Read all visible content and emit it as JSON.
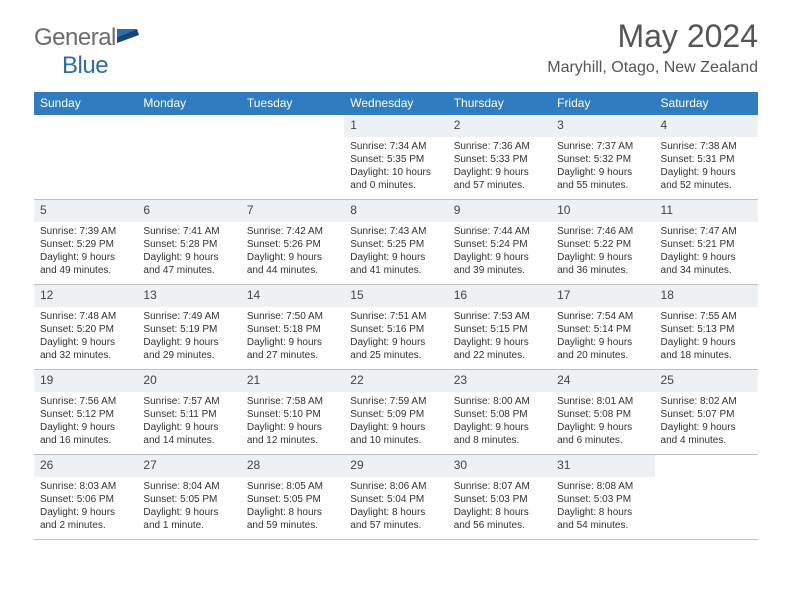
{
  "brand": {
    "name_part1": "General",
    "name_part2": "Blue",
    "flag_colors": {
      "top": "#2f6da8",
      "bottom": "#13477a"
    }
  },
  "title": "May 2024",
  "location": "Maryhill, Otago, New Zealand",
  "header_bg": "#2f7dc0",
  "daynum_bg": "#eef1f3",
  "border_color": "#bfbfbf",
  "weekdays": [
    "Sunday",
    "Monday",
    "Tuesday",
    "Wednesday",
    "Thursday",
    "Friday",
    "Saturday"
  ],
  "weeks": [
    [
      {
        "n": "",
        "sunrise": "",
        "sunset": "",
        "day": ""
      },
      {
        "n": "",
        "sunrise": "",
        "sunset": "",
        "day": ""
      },
      {
        "n": "",
        "sunrise": "",
        "sunset": "",
        "day": ""
      },
      {
        "n": "1",
        "sunrise": "Sunrise: 7:34 AM",
        "sunset": "Sunset: 5:35 PM",
        "day": "Daylight: 10 hours and 0 minutes."
      },
      {
        "n": "2",
        "sunrise": "Sunrise: 7:36 AM",
        "sunset": "Sunset: 5:33 PM",
        "day": "Daylight: 9 hours and 57 minutes."
      },
      {
        "n": "3",
        "sunrise": "Sunrise: 7:37 AM",
        "sunset": "Sunset: 5:32 PM",
        "day": "Daylight: 9 hours and 55 minutes."
      },
      {
        "n": "4",
        "sunrise": "Sunrise: 7:38 AM",
        "sunset": "Sunset: 5:31 PM",
        "day": "Daylight: 9 hours and 52 minutes."
      }
    ],
    [
      {
        "n": "5",
        "sunrise": "Sunrise: 7:39 AM",
        "sunset": "Sunset: 5:29 PM",
        "day": "Daylight: 9 hours and 49 minutes."
      },
      {
        "n": "6",
        "sunrise": "Sunrise: 7:41 AM",
        "sunset": "Sunset: 5:28 PM",
        "day": "Daylight: 9 hours and 47 minutes."
      },
      {
        "n": "7",
        "sunrise": "Sunrise: 7:42 AM",
        "sunset": "Sunset: 5:26 PM",
        "day": "Daylight: 9 hours and 44 minutes."
      },
      {
        "n": "8",
        "sunrise": "Sunrise: 7:43 AM",
        "sunset": "Sunset: 5:25 PM",
        "day": "Daylight: 9 hours and 41 minutes."
      },
      {
        "n": "9",
        "sunrise": "Sunrise: 7:44 AM",
        "sunset": "Sunset: 5:24 PM",
        "day": "Daylight: 9 hours and 39 minutes."
      },
      {
        "n": "10",
        "sunrise": "Sunrise: 7:46 AM",
        "sunset": "Sunset: 5:22 PM",
        "day": "Daylight: 9 hours and 36 minutes."
      },
      {
        "n": "11",
        "sunrise": "Sunrise: 7:47 AM",
        "sunset": "Sunset: 5:21 PM",
        "day": "Daylight: 9 hours and 34 minutes."
      }
    ],
    [
      {
        "n": "12",
        "sunrise": "Sunrise: 7:48 AM",
        "sunset": "Sunset: 5:20 PM",
        "day": "Daylight: 9 hours and 32 minutes."
      },
      {
        "n": "13",
        "sunrise": "Sunrise: 7:49 AM",
        "sunset": "Sunset: 5:19 PM",
        "day": "Daylight: 9 hours and 29 minutes."
      },
      {
        "n": "14",
        "sunrise": "Sunrise: 7:50 AM",
        "sunset": "Sunset: 5:18 PM",
        "day": "Daylight: 9 hours and 27 minutes."
      },
      {
        "n": "15",
        "sunrise": "Sunrise: 7:51 AM",
        "sunset": "Sunset: 5:16 PM",
        "day": "Daylight: 9 hours and 25 minutes."
      },
      {
        "n": "16",
        "sunrise": "Sunrise: 7:53 AM",
        "sunset": "Sunset: 5:15 PM",
        "day": "Daylight: 9 hours and 22 minutes."
      },
      {
        "n": "17",
        "sunrise": "Sunrise: 7:54 AM",
        "sunset": "Sunset: 5:14 PM",
        "day": "Daylight: 9 hours and 20 minutes."
      },
      {
        "n": "18",
        "sunrise": "Sunrise: 7:55 AM",
        "sunset": "Sunset: 5:13 PM",
        "day": "Daylight: 9 hours and 18 minutes."
      }
    ],
    [
      {
        "n": "19",
        "sunrise": "Sunrise: 7:56 AM",
        "sunset": "Sunset: 5:12 PM",
        "day": "Daylight: 9 hours and 16 minutes."
      },
      {
        "n": "20",
        "sunrise": "Sunrise: 7:57 AM",
        "sunset": "Sunset: 5:11 PM",
        "day": "Daylight: 9 hours and 14 minutes."
      },
      {
        "n": "21",
        "sunrise": "Sunrise: 7:58 AM",
        "sunset": "Sunset: 5:10 PM",
        "day": "Daylight: 9 hours and 12 minutes."
      },
      {
        "n": "22",
        "sunrise": "Sunrise: 7:59 AM",
        "sunset": "Sunset: 5:09 PM",
        "day": "Daylight: 9 hours and 10 minutes."
      },
      {
        "n": "23",
        "sunrise": "Sunrise: 8:00 AM",
        "sunset": "Sunset: 5:08 PM",
        "day": "Daylight: 9 hours and 8 minutes."
      },
      {
        "n": "24",
        "sunrise": "Sunrise: 8:01 AM",
        "sunset": "Sunset: 5:08 PM",
        "day": "Daylight: 9 hours and 6 minutes."
      },
      {
        "n": "25",
        "sunrise": "Sunrise: 8:02 AM",
        "sunset": "Sunset: 5:07 PM",
        "day": "Daylight: 9 hours and 4 minutes."
      }
    ],
    [
      {
        "n": "26",
        "sunrise": "Sunrise: 8:03 AM",
        "sunset": "Sunset: 5:06 PM",
        "day": "Daylight: 9 hours and 2 minutes."
      },
      {
        "n": "27",
        "sunrise": "Sunrise: 8:04 AM",
        "sunset": "Sunset: 5:05 PM",
        "day": "Daylight: 9 hours and 1 minute."
      },
      {
        "n": "28",
        "sunrise": "Sunrise: 8:05 AM",
        "sunset": "Sunset: 5:05 PM",
        "day": "Daylight: 8 hours and 59 minutes."
      },
      {
        "n": "29",
        "sunrise": "Sunrise: 8:06 AM",
        "sunset": "Sunset: 5:04 PM",
        "day": "Daylight: 8 hours and 57 minutes."
      },
      {
        "n": "30",
        "sunrise": "Sunrise: 8:07 AM",
        "sunset": "Sunset: 5:03 PM",
        "day": "Daylight: 8 hours and 56 minutes."
      },
      {
        "n": "31",
        "sunrise": "Sunrise: 8:08 AM",
        "sunset": "Sunset: 5:03 PM",
        "day": "Daylight: 8 hours and 54 minutes."
      },
      {
        "n": "",
        "sunrise": "",
        "sunset": "",
        "day": ""
      }
    ]
  ]
}
